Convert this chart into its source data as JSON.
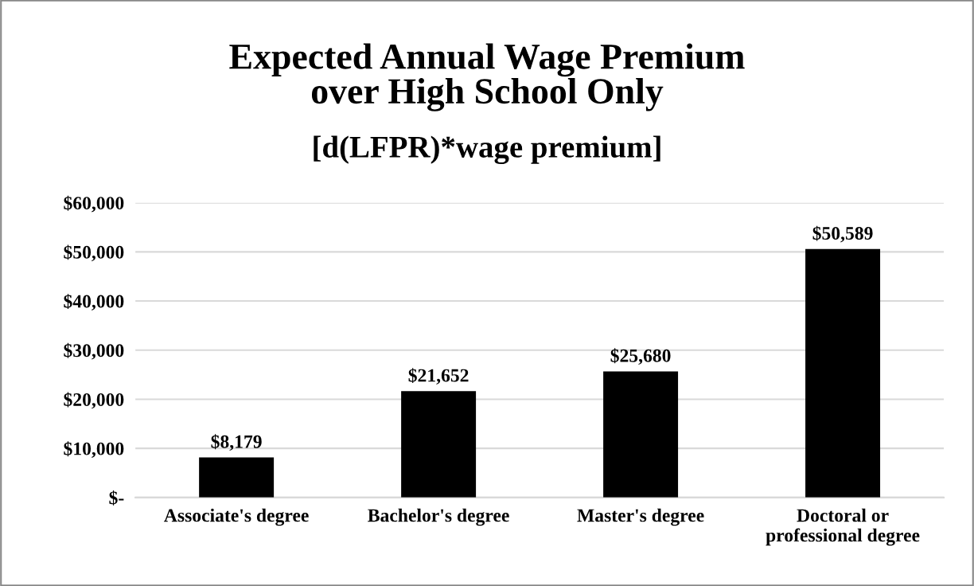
{
  "chart_data": {
    "type": "bar",
    "title": "Expected Annual Wage Premium\nover High School Only",
    "subtitle": "[d(LFPR)*wage premium]",
    "categories": [
      "Associate's degree",
      "Bachelor's degree",
      "Master's degree",
      "Doctoral or\nprofessional degree"
    ],
    "values": [
      8179,
      21652,
      25680,
      50589
    ],
    "value_labels": [
      "$8,179",
      "$21,652",
      "$25,680",
      "$50,589"
    ],
    "color": "#000000",
    "ylim": [
      0,
      60000
    ],
    "yticks": [
      {
        "value": 0,
        "label": "$-"
      },
      {
        "value": 10000,
        "label": "$10,000"
      },
      {
        "value": 20000,
        "label": "$20,000"
      },
      {
        "value": 30000,
        "label": "$30,000"
      },
      {
        "value": 40000,
        "label": "$40,000"
      },
      {
        "value": 50000,
        "label": "$50,000"
      },
      {
        "value": 60000,
        "label": "$60,000"
      }
    ],
    "grid": "y",
    "legend": false
  }
}
